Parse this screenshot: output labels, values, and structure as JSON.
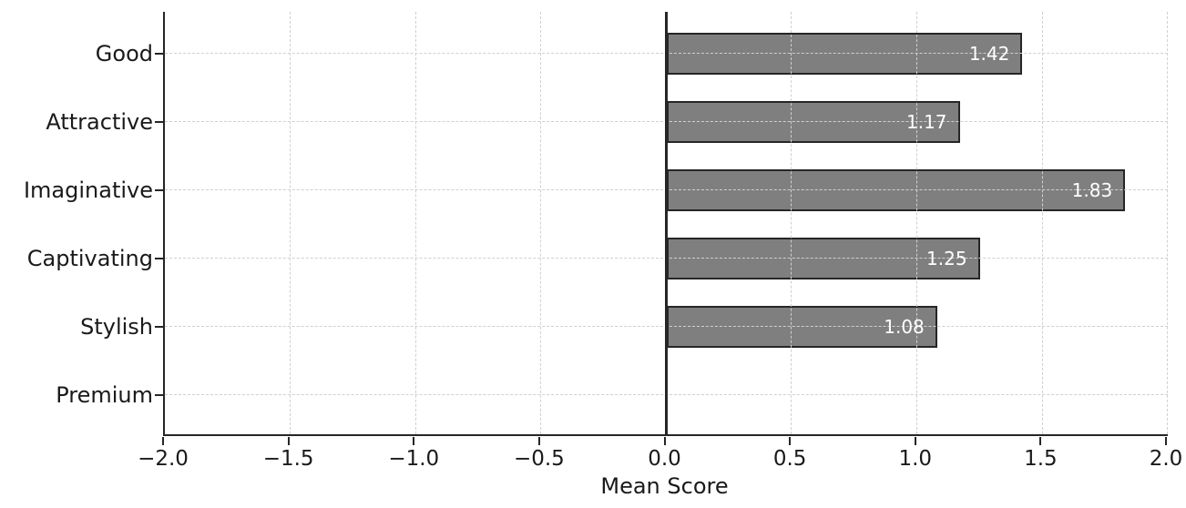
{
  "chart_data": {
    "type": "bar",
    "orientation": "horizontal",
    "title": "",
    "xlabel": "Mean Score",
    "ylabel": "",
    "categories": [
      "Good",
      "Attractive",
      "Imaginative",
      "Captivating",
      "Stylish",
      "Premium"
    ],
    "values": [
      1.42,
      1.17,
      1.83,
      1.25,
      1.08,
      0
    ],
    "bar_labels": [
      "1.42",
      "1.17",
      "1.83",
      "1.25",
      "1.08",
      ""
    ],
    "xlim": [
      -2.0,
      2.0
    ],
    "xticks": [
      -2.0,
      -1.5,
      -1.0,
      -0.5,
      0.0,
      0.5,
      1.0,
      1.5,
      2.0
    ],
    "xtick_labels": [
      "−2.0",
      "−1.5",
      "−1.0",
      "−0.5",
      "0.0",
      "0.5",
      "1.0",
      "1.5",
      "2.0"
    ],
    "grid": "dashed",
    "grid_over_bars": true,
    "legend": "none",
    "zero_line": true,
    "colors": {
      "bar_fill": "#7f7f7f",
      "bar_edge": "#262626",
      "value_label": "#ffffff",
      "axis": "#262626",
      "grid": "#d0d0d0",
      "text": "#1a1a1a",
      "background": "#ffffff"
    }
  }
}
